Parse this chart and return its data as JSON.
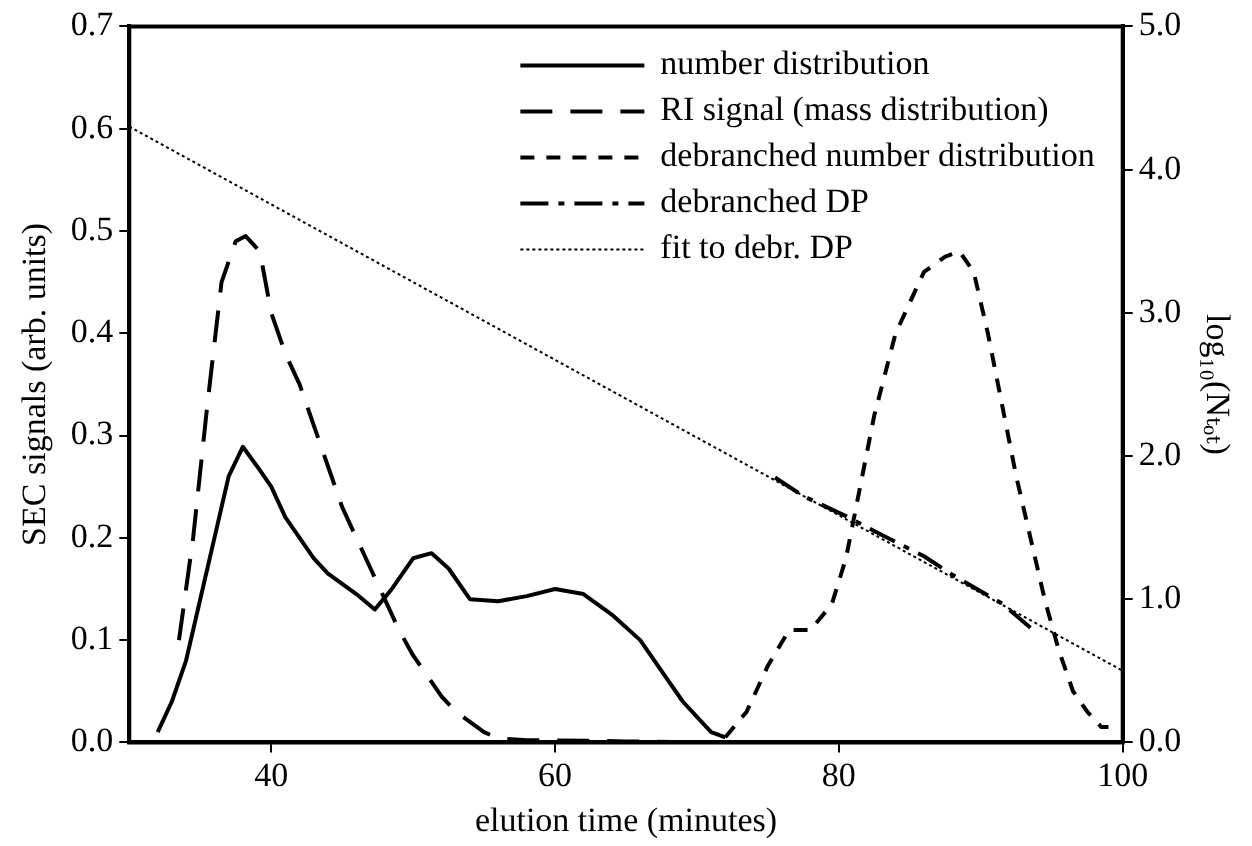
{
  "chart_data": {
    "type": "line",
    "xlabel": "elution time (minutes)",
    "ylabel": "SEC signals (arb. units)",
    "y2label": "log₁₀(Nₜₒₜ)",
    "xlim": [
      30,
      100
    ],
    "xticks": [
      40,
      60,
      80,
      100
    ],
    "ylim": [
      0,
      0.7
    ],
    "yticks": [
      {
        "value": 0,
        "label": "0.0"
      },
      {
        "value": 0.1,
        "label": "0.1"
      },
      {
        "value": 0.2,
        "label": "0.2"
      },
      {
        "value": 0.3,
        "label": "0.3"
      },
      {
        "value": 0.4,
        "label": "0.4"
      },
      {
        "value": 0.5,
        "label": "0.5"
      },
      {
        "value": 0.6,
        "label": "0.6"
      },
      {
        "value": 0.7,
        "label": "0.7"
      }
    ],
    "y2lim": [
      0,
      5
    ],
    "y2ticks": [
      {
        "value": 0,
        "label": "0.0"
      },
      {
        "value": 1,
        "label": "1.0"
      },
      {
        "value": 2,
        "label": "2.0"
      },
      {
        "value": 3,
        "label": "3.0"
      },
      {
        "value": 4,
        "label": "4.0"
      },
      {
        "value": 5,
        "label": "5.0"
      }
    ],
    "legend": "top right",
    "grid": false,
    "marker": "none",
    "series": [
      {
        "name": "number distribution",
        "color": "#000000",
        "line_style": "solid",
        "x": [
          32,
          33,
          34,
          35,
          36,
          37,
          38,
          39,
          40,
          41,
          42,
          43,
          44,
          45,
          46,
          47.3,
          48.5,
          50,
          51.3,
          52.5,
          54,
          56,
          58,
          60,
          62,
          64,
          66,
          67,
          68,
          69,
          70,
          71,
          72
        ],
        "values": [
          0.01,
          0.04,
          0.08,
          0.14,
          0.2,
          0.26,
          0.289,
          0.27,
          0.25,
          0.22,
          0.2,
          0.18,
          0.165,
          0.155,
          0.145,
          0.13,
          0.15,
          0.18,
          0.185,
          0.17,
          0.14,
          0.138,
          0.143,
          0.15,
          0.145,
          0.125,
          0.1,
          0.08,
          0.06,
          0.04,
          0.025,
          0.01,
          0.005
        ]
      },
      {
        "name": "RI signal (mass distribution)",
        "color": "#000000",
        "line_style": "dashed",
        "x": [
          33.5,
          34.5,
          35.5,
          36.5,
          37.5,
          38.2,
          39.2,
          40,
          41,
          42,
          43,
          44,
          45,
          46,
          47,
          48,
          49,
          50,
          51,
          52,
          53,
          54,
          55,
          56,
          58,
          60,
          65,
          70
        ],
        "values": [
          0.1,
          0.2,
          0.33,
          0.45,
          0.49,
          0.495,
          0.48,
          0.42,
          0.38,
          0.35,
          0.31,
          0.27,
          0.23,
          0.2,
          0.17,
          0.14,
          0.11,
          0.085,
          0.065,
          0.045,
          0.03,
          0.02,
          0.01,
          0.004,
          0.002,
          0.002,
          0.001,
          0
        ]
      },
      {
        "name": "debranched number distribution",
        "color": "#000000",
        "line_style": "dashed",
        "x": [
          72,
          73.5,
          75,
          76.5,
          78,
          79.5,
          80.5,
          81.5,
          82.5,
          84,
          86,
          87.5,
          88.5,
          89.5,
          90.5,
          91.5,
          92.5,
          93.5,
          94.5,
          95.5,
          96.5,
          97.5,
          98.5,
          99
        ],
        "values": [
          0.005,
          0.03,
          0.075,
          0.11,
          0.11,
          0.135,
          0.18,
          0.25,
          0.32,
          0.4,
          0.46,
          0.475,
          0.48,
          0.46,
          0.4,
          0.33,
          0.26,
          0.2,
          0.14,
          0.09,
          0.05,
          0.03,
          0.015,
          0.015
        ]
      },
      {
        "name": "debranched DP",
        "color": "#000000",
        "line_style": "dashed",
        "axis": "y2",
        "x": [
          75.5,
          77.5,
          80.5,
          83,
          86,
          88,
          91.5,
          93.5
        ],
        "values": [
          1.85,
          1.72,
          1.58,
          1.45,
          1.3,
          1.17,
          0.97,
          0.8
        ]
      },
      {
        "name": "fit to debr. DP",
        "color": "#000000",
        "line_style": "dotted",
        "axis": "y2",
        "x": [
          30,
          100
        ],
        "values": [
          4.3,
          0.5
        ]
      }
    ]
  }
}
